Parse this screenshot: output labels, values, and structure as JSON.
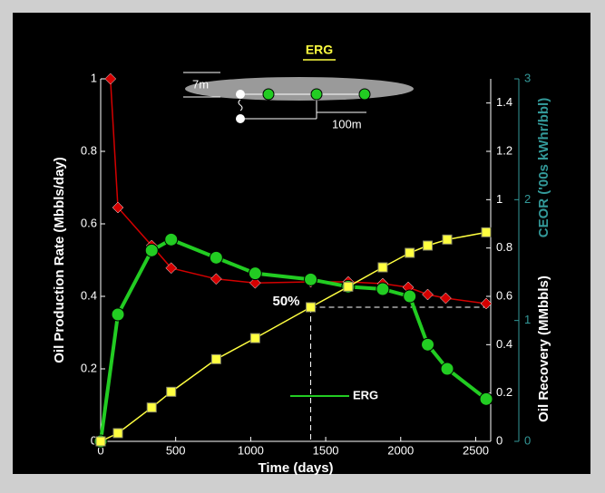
{
  "chart_data": {
    "type": "line",
    "diagram": {
      "title": "ERG",
      "labels": [
        "7m",
        "100m"
      ]
    },
    "xlabel": "Time (days)",
    "ylabel": "Oil Production Rate (Mbbls/day)",
    "y2label": "Oil Recovery (MMbbls)",
    "y3label": "CEOR ('00s kWhr/bbl)",
    "xlim": [
      0,
      2600
    ],
    "xticks": [
      0,
      500,
      1000,
      1500,
      2000,
      2500
    ],
    "ylim": [
      0,
      1
    ],
    "yticks": [
      0,
      0.2,
      0.4,
      0.6,
      0.8,
      1
    ],
    "y2lim": [
      0,
      1.5
    ],
    "y2ticks": [
      0,
      0.2,
      0.4,
      0.6,
      0.8,
      1,
      1.2,
      1.4
    ],
    "y3lim": [
      0,
      3
    ],
    "y3ticks": [
      0,
      1,
      2,
      3
    ],
    "series": [
      {
        "color": "#d40000",
        "marker": "diamond",
        "axis": "y",
        "x": [
          65,
          115,
          340,
          470,
          770,
          1030,
          1400,
          1650,
          1880,
          2050,
          2180,
          2300,
          2570
        ],
        "values": [
          1.0,
          0.645,
          0.54,
          0.478,
          0.448,
          0.437,
          0.44,
          0.44,
          0.435,
          0.425,
          0.405,
          0.395,
          0.38
        ]
      },
      {
        "name": "ERG",
        "color": "#22cc22",
        "marker": "circle",
        "axis": "y3",
        "x": [
          0,
          115,
          340,
          470,
          770,
          1030,
          1400,
          1650,
          1880,
          2060,
          2180,
          2310,
          2570
        ],
        "values": [
          0,
          1.05,
          1.58,
          1.67,
          1.52,
          1.39,
          1.34,
          1.28,
          1.26,
          1.2,
          0.8,
          0.6,
          0.35
        ]
      },
      {
        "color": "#ffff40",
        "marker": "square",
        "axis": "y2",
        "x": [
          0,
          115,
          340,
          470,
          770,
          1030,
          1400,
          1650,
          1880,
          2060,
          2180,
          2310,
          2570
        ],
        "values": [
          0,
          0.034,
          0.14,
          0.205,
          0.34,
          0.427,
          0.555,
          0.64,
          0.72,
          0.78,
          0.81,
          0.835,
          0.865
        ]
      }
    ],
    "annotation": {
      "text": "50%",
      "x": 1400,
      "y": 0.555,
      "axis": "y2"
    },
    "y3color": "#339999"
  }
}
